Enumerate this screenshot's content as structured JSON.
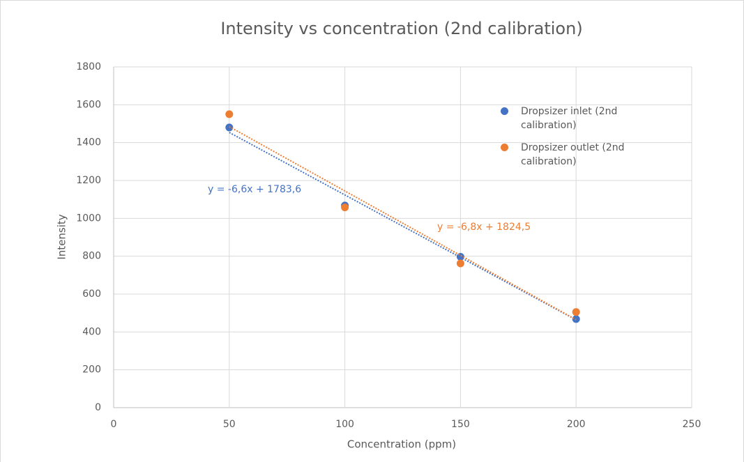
{
  "chart_data": {
    "type": "scatter",
    "title": "Intensity vs concentration (2nd calibration)",
    "xlabel": "Concentration (ppm)",
    "ylabel": "Intensity",
    "xlim": [
      0,
      250
    ],
    "xticks": [
      0,
      50,
      100,
      150,
      200,
      250
    ],
    "ylim": [
      0,
      1800
    ],
    "yticks": [
      0,
      200,
      400,
      600,
      800,
      1000,
      1200,
      1400,
      1600,
      1800
    ],
    "grid": true,
    "legend": "upper right",
    "series": [
      {
        "name": "Dropsizer inlet (2nd calibration)",
        "color": "#4472c4",
        "x": [
          50,
          100,
          150,
          200
        ],
        "values": [
          1480,
          1068,
          797,
          468
        ],
        "trendline": {
          "slope": -6.6,
          "intercept": 1783.6,
          "label": "y = -6,6x + 1783,6"
        }
      },
      {
        "name": "Dropsizer outlet (2nd calibration)",
        "color": "#ed7d31",
        "x": [
          50,
          100,
          150,
          200
        ],
        "values": [
          1550,
          1058,
          762,
          505
        ],
        "trendline": {
          "slope": -6.8,
          "intercept": 1824.5,
          "label": "y = -6,8x + 1824,5"
        }
      }
    ]
  }
}
